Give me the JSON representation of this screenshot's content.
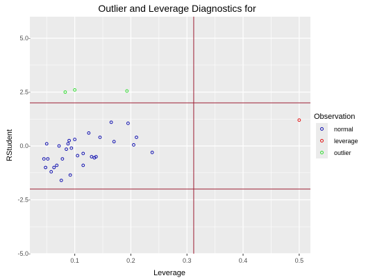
{
  "chart_data": {
    "type": "scatter",
    "title": "Outlier and Leverage Diagnostics for",
    "xlabel": "Leverage",
    "ylabel": "RStudent",
    "xlim": [
      0.02,
      0.52
    ],
    "ylim": [
      -5.0,
      6.0
    ],
    "x_ticks": [
      0.1,
      0.2,
      0.3,
      0.4,
      0.5
    ],
    "x_tick_labels": [
      "0.1",
      "0.2",
      "0.3",
      "0.4",
      "0.5"
    ],
    "y_ticks": [
      -5.0,
      -2.5,
      0.0,
      2.5,
      5.0
    ],
    "y_tick_labels": [
      "-5.0-",
      "-2.5-",
      "0.0-",
      "2.5-",
      "5.0-"
    ],
    "grid": true,
    "legend": {
      "title": "Observation",
      "placement": "right",
      "entries": [
        "normal",
        "leverage",
        "outlier"
      ]
    },
    "colors": {
      "panel_bg": "#ebebeb",
      "grid": "#ffffff",
      "normal": "#1010b0",
      "leverage": "#e01010",
      "outlier": "#33dd33",
      "ref_line": "#9b1b30"
    },
    "reference_lines": {
      "horizontal": [
        2.0,
        -2.0
      ],
      "vertical": [
        0.312
      ]
    },
    "series": [
      {
        "name": "normal",
        "points": [
          [
            0.045,
            -0.6
          ],
          [
            0.048,
            -1.0
          ],
          [
            0.05,
            0.1
          ],
          [
            0.052,
            -0.6
          ],
          [
            0.058,
            -1.2
          ],
          [
            0.063,
            -1.0
          ],
          [
            0.068,
            -0.9
          ],
          [
            0.072,
            0.0
          ],
          [
            0.076,
            -1.6
          ],
          [
            0.078,
            -0.6
          ],
          [
            0.085,
            -0.15
          ],
          [
            0.088,
            0.1
          ],
          [
            0.09,
            0.25
          ],
          [
            0.092,
            -1.35
          ],
          [
            0.094,
            -0.1
          ],
          [
            0.1,
            0.3
          ],
          [
            0.105,
            -0.45
          ],
          [
            0.115,
            -0.35
          ],
          [
            0.115,
            -0.9
          ],
          [
            0.125,
            0.6
          ],
          [
            0.13,
            -0.5
          ],
          [
            0.135,
            -0.55
          ],
          [
            0.138,
            -0.5
          ],
          [
            0.145,
            0.4
          ],
          [
            0.165,
            1.1
          ],
          [
            0.17,
            0.2
          ],
          [
            0.195,
            1.05
          ],
          [
            0.205,
            0.05
          ],
          [
            0.21,
            0.4
          ],
          [
            0.238,
            -0.3
          ]
        ]
      },
      {
        "name": "leverage",
        "points": [
          [
            0.5,
            1.2
          ]
        ]
      },
      {
        "name": "outlier",
        "points": [
          [
            0.083,
            2.5
          ],
          [
            0.1,
            2.6
          ],
          [
            0.193,
            2.55
          ]
        ]
      }
    ]
  }
}
